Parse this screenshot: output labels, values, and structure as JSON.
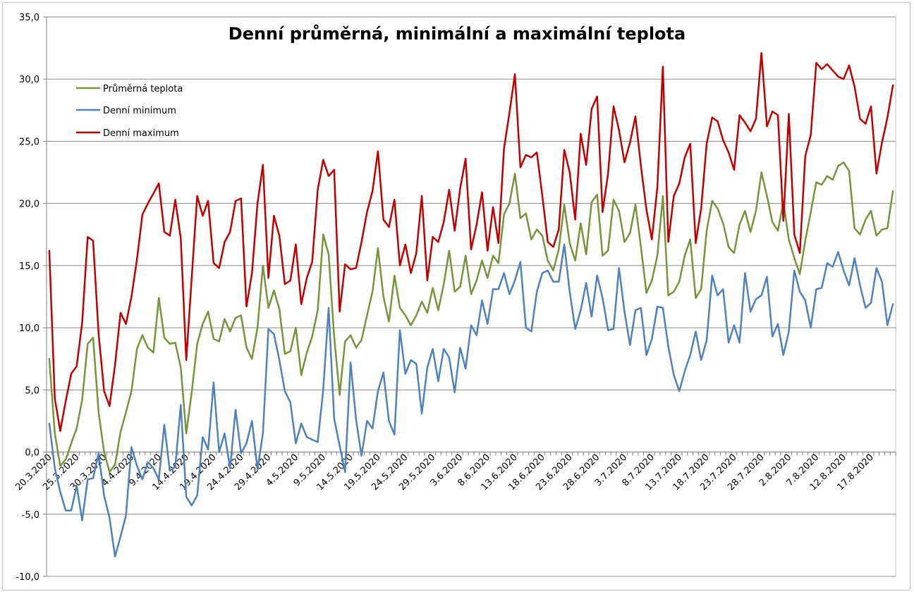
{
  "chart_data": {
    "type": "line",
    "title": "Denní průměrná, minimální a maximální teplota",
    "xlabel": "",
    "ylabel": "",
    "ylim": [
      -10,
      35
    ],
    "y_ticks": [
      "-10,0",
      "-5,0",
      "0,0",
      "5,0",
      "10,0",
      "15,0",
      "20,0",
      "25,0",
      "30,0",
      "35,0"
    ],
    "grid": "horizontal",
    "legend_position": "top-left",
    "x_tick_labels": [
      "20.3.2020",
      "25.3.2020",
      "30.3.2020",
      "4.4.2020",
      "9.4.2020",
      "14.4.2020",
      "19.4.2020",
      "24.4.2020",
      "29.4.2020",
      "4.5.2020",
      "9.5.2020",
      "14.5.2020",
      "19.5.2020",
      "24.5.2020",
      "29.5.2020",
      "3.6.2020",
      "8.6.2020",
      "13.6.2020",
      "18.6.2020",
      "23.6.2020",
      "28.6.2020",
      "3.7.2020",
      "8.7.2020",
      "13.7.2020",
      "18.7.2020",
      "23.7.2020",
      "28.7.2020",
      "2.8.2020",
      "7.8.2020",
      "12.8.2020",
      "17.8.2020"
    ],
    "x_start": "20.3.2020",
    "series": [
      {
        "name": "Průměrná teplota",
        "color": "#77933c",
        "values": [
          7.5,
          1.5,
          -1.1,
          -0.6,
          0.7,
          1.9,
          4.2,
          8.7,
          9.2,
          3.2,
          0.0,
          -1.6,
          -1.0,
          1.6,
          3.2,
          4.9,
          8.3,
          9.4,
          8.4,
          8.0,
          12.4,
          9.2,
          8.7,
          8.8,
          6.8,
          1.5,
          4.8,
          8.7,
          10.3,
          11.3,
          9.1,
          8.9,
          10.7,
          9.7,
          10.8,
          11.0,
          8.4,
          7.5,
          10.0,
          15.0,
          11.6,
          13.0,
          11.5,
          7.9,
          8.1,
          10.0,
          6.2,
          8.0,
          9.3,
          11.4,
          17.5,
          15.9,
          9.3,
          4.6,
          8.9,
          9.4,
          8.4,
          9.0,
          11.0,
          12.9,
          16.4,
          12.5,
          10.5,
          14.2,
          11.6,
          11.0,
          10.2,
          11.0,
          12.1,
          11.2,
          13.2,
          11.4,
          13.5,
          16.2,
          12.9,
          13.3,
          15.8,
          12.7,
          13.8,
          15.4,
          14.0,
          15.8,
          15.2,
          19.1,
          20.0,
          22.4,
          18.8,
          19.2,
          17.1,
          17.9,
          17.4,
          15.4,
          14.6,
          16.3,
          19.9,
          16.8,
          15.4,
          18.4,
          15.9,
          20.1,
          20.7,
          15.8,
          16.2,
          20.3,
          19.4,
          16.9,
          17.6,
          19.9,
          16.5,
          12.8,
          13.8,
          15.8,
          20.6,
          12.6,
          12.9,
          13.7,
          15.8,
          17.1,
          12.4,
          13.1,
          17.8,
          20.2,
          19.6,
          18.4,
          16.5,
          16.0,
          18.3,
          19.4,
          17.7,
          19.4,
          22.5,
          20.6,
          18.5,
          17.8,
          20.1,
          17.1,
          15.6,
          14.3,
          17.0,
          19.3,
          21.7,
          21.5,
          22.2,
          21.9,
          23.0,
          23.3,
          22.6,
          18.0,
          17.5,
          18.7,
          19.4,
          17.4,
          17.9,
          18.0,
          21.0
        ]
      },
      {
        "name": "Denní minimum",
        "color": "#4f81bd",
        "values": [
          2.3,
          -1.3,
          -3.2,
          -4.7,
          -4.7,
          -2.7,
          -5.5,
          -2.2,
          -2.1,
          -0.1,
          -3.5,
          -5.3,
          -8.4,
          -6.8,
          -5.1,
          0.4,
          -1.1,
          -2.2,
          -0.8,
          -1.3,
          -2.2,
          2.2,
          -1.5,
          -1.2,
          3.8,
          -3.6,
          -4.3,
          -3.5,
          1.2,
          0.2,
          5.6,
          0.0,
          1.5,
          -1.3,
          3.4,
          -0.1,
          0.7,
          2.5,
          -1.4,
          1.5,
          9.9,
          9.5,
          7.4,
          4.9,
          4.0,
          0.7,
          2.3,
          1.2,
          1.0,
          0.8,
          5.0,
          11.6,
          2.7,
          0.5,
          -1.6,
          7.2,
          2.6,
          -0.3,
          2.5,
          1.9,
          4.9,
          6.4,
          2.5,
          1.4,
          9.8,
          6.3,
          7.4,
          7.1,
          3.1,
          6.8,
          8.3,
          5.7,
          8.3,
          7.6,
          4.8,
          8.4,
          6.7,
          10.2,
          9.4,
          12.2,
          10.3,
          13.1,
          13.1,
          14.4,
          12.7,
          13.8,
          15.3,
          10.0,
          9.7,
          12.9,
          14.4,
          14.6,
          13.7,
          13.7,
          16.7,
          12.9,
          9.9,
          11.4,
          13.6,
          10.9,
          14.2,
          12.4,
          9.8,
          9.9,
          14.8,
          11.3,
          8.6,
          11.4,
          11.6,
          7.8,
          9.1,
          11.7,
          11.6,
          8.5,
          6.2,
          4.9,
          6.5,
          7.8,
          9.7,
          7.4,
          9.0,
          14.2,
          12.6,
          13.1,
          8.8,
          10.2,
          8.8,
          14.4,
          11.3,
          12.3,
          12.6,
          14.1,
          9.3,
          10.3,
          7.8,
          9.7,
          14.6,
          12.9,
          12.2,
          10.0,
          13.1,
          13.2,
          15.2,
          14.9,
          16.1,
          14.6,
          13.4,
          15.6,
          13.4,
          11.6,
          12.0,
          14.8,
          13.7,
          10.2,
          11.9
        ]
      },
      {
        "name": "Denní maximum",
        "color": "#c00000",
        "values": [
          16.2,
          4.3,
          1.7,
          4.1,
          6.3,
          6.9,
          10.4,
          17.3,
          17.0,
          9.5,
          4.9,
          3.7,
          7.0,
          11.2,
          10.3,
          12.5,
          15.5,
          19.1,
          20.0,
          20.8,
          21.6,
          17.7,
          17.4,
          20.3,
          17.2,
          7.4,
          14.0,
          20.6,
          19.0,
          20.2,
          15.2,
          14.8,
          16.9,
          17.7,
          20.2,
          20.4,
          11.7,
          14.4,
          20.0,
          23.1,
          14.0,
          19.0,
          17.4,
          13.5,
          13.8,
          16.7,
          11.9,
          14.0,
          15.3,
          21.1,
          23.5,
          22.2,
          22.7,
          11.3,
          15.1,
          14.7,
          14.8,
          16.9,
          19.3,
          21.0,
          24.2,
          18.7,
          18.1,
          20.3,
          15.0,
          16.7,
          14.4,
          16.0,
          20.6,
          13.8,
          17.3,
          16.9,
          18.5,
          21.1,
          17.8,
          21.2,
          23.6,
          16.3,
          18.3,
          20.9,
          16.2,
          19.7,
          16.8,
          24.4,
          27.3,
          30.4,
          22.9,
          23.9,
          23.7,
          24.1,
          20.6,
          16.9,
          16.5,
          17.9,
          24.3,
          22.5,
          18.7,
          25.6,
          23.1,
          27.6,
          28.6,
          19.3,
          22.4,
          27.8,
          25.9,
          23.3,
          24.9,
          27.0,
          23.0,
          19.5,
          17.1,
          21.3,
          31.0,
          16.9,
          20.6,
          21.6,
          23.7,
          24.8,
          16.8,
          19.6,
          24.8,
          26.9,
          26.6,
          25.1,
          24.1,
          22.7,
          27.1,
          26.5,
          25.8,
          26.8,
          32.1,
          26.2,
          27.4,
          27.1,
          18.6,
          27.2,
          17.5,
          16.0,
          23.8,
          25.5,
          31.3,
          30.8,
          31.2,
          30.7,
          30.2,
          30.0,
          31.1,
          29.4,
          26.8,
          26.4,
          27.8,
          22.4,
          24.9,
          26.9,
          29.5
        ]
      }
    ]
  }
}
